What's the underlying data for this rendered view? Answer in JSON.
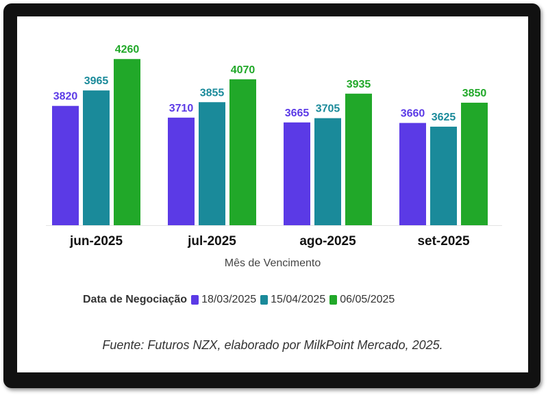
{
  "chart_data": {
    "type": "bar",
    "categories": [
      "jun-2025",
      "jul-2025",
      "ago-2025",
      "set-2025"
    ],
    "series": [
      {
        "name": "18/03/2025",
        "color": "#5b3ae6",
        "values": [
          3820,
          3710,
          3665,
          3660
        ]
      },
      {
        "name": "15/04/2025",
        "color": "#1a8a9a",
        "values": [
          3965,
          3855,
          3705,
          3625
        ]
      },
      {
        "name": "06/05/2025",
        "color": "#21a829",
        "values": [
          4260,
          4070,
          3935,
          3850
        ]
      }
    ],
    "xlabel": "Mês de Vencimento",
    "ylabel": "",
    "ylim": [
      2700,
      4300
    ],
    "legend_title": "Data de Negociação",
    "grid": false
  },
  "source_note": "Fuente: Futuros NZX, elaborado por MilkPoint Mercado, 2025."
}
